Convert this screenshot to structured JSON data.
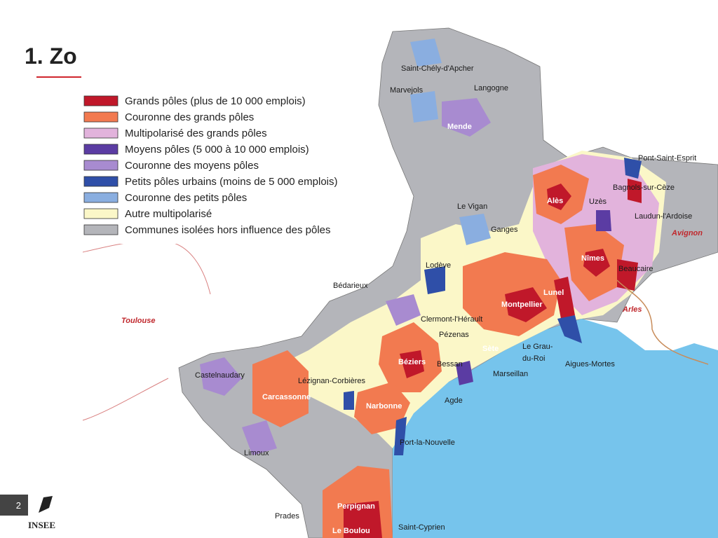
{
  "slide": {
    "title": "1. Zo",
    "page_number": "2",
    "logo": "INSEE"
  },
  "legend": [
    {
      "label": "Grands pôles (plus de 10 000 emplois)",
      "color": "#c0182a"
    },
    {
      "label": "Couronne des grands pôles",
      "color": "#f27a50"
    },
    {
      "label": "Multipolarisé des grands pôles",
      "color": "#e2b3dc"
    },
    {
      "label": "Moyens pôles (5 000 à 10 000 emplois)",
      "color": "#5b3ca3"
    },
    {
      "label": "Couronne des moyens pôles",
      "color": "#a88bd0"
    },
    {
      "label": "Petits pôles urbains (moins de 5 000 emplois)",
      "color": "#2f4fa8"
    },
    {
      "label": "Couronne des petits pôles",
      "color": "#8aaee0"
    },
    {
      "label": "Autre multipolarisé",
      "color": "#fbf7c8"
    },
    {
      "label": "Communes isolées hors influence des pôles",
      "color": "#b4b5ba"
    }
  ],
  "places": [
    "Saint-Chély-d'Apcher",
    "Marvejols",
    "Langogne",
    "Mende",
    "Pont-Saint-Esprit",
    "Bagnols-sur-Cèze",
    "Alès",
    "Uzès",
    "Laudun-l'Ardoise",
    "Avignon",
    "Le Vigan",
    "Ganges",
    "Nîmes",
    "Beaucaire",
    "Lodève",
    "Lunel",
    "Bédarieux",
    "Montpellier",
    "Arles",
    "Toulouse",
    "Clermont-l'Hérault",
    "Pézenas",
    "Sète",
    [
      "Le Grau-",
      "du-Roi"
    ],
    "Aigues-Mortes",
    "Béziers",
    "Bessan",
    "Marseillan",
    "Castelnaudary",
    "Lézignan-Corbières",
    "Carcassonne",
    "Narbonne",
    "Agde",
    "Limoux",
    "Port-la-Nouvelle",
    "Perpignan",
    "Prades",
    "Le Boulou",
    "Saint-Cyprien"
  ]
}
